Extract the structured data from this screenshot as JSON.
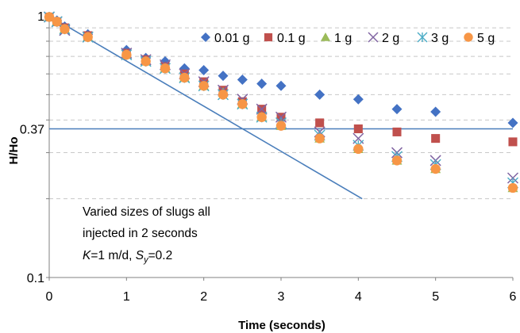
{
  "chart_data": {
    "type": "scatter",
    "title": "",
    "xlabel": "Time (seconds)",
    "ylabel": "H/Ho",
    "xlim": [
      0,
      6
    ],
    "ylim": [
      0.1,
      1
    ],
    "y_scale": "log",
    "grid": "horizontal dashed",
    "legend_position": "top-right",
    "x_ticks": [
      "0",
      "1",
      "2",
      "3",
      "4",
      "5",
      "6"
    ],
    "y_ticks": [
      {
        "value": 1,
        "label": "1"
      },
      {
        "value": 0.37,
        "label": "0.37"
      },
      {
        "value": 0.1,
        "label": "0.1"
      }
    ],
    "series": [
      {
        "name": "0.01 g",
        "marker": "diamond",
        "color": "#4472c4",
        "x": [
          0,
          0.1,
          0.2,
          0.5,
          1,
          1.25,
          1.5,
          1.75,
          2,
          2.25,
          2.5,
          2.75,
          3,
          3.5,
          4,
          4.5,
          5,
          6
        ],
        "y": [
          0.99,
          0.96,
          0.91,
          0.85,
          0.74,
          0.69,
          0.67,
          0.63,
          0.62,
          0.59,
          0.57,
          0.55,
          0.54,
          0.5,
          0.48,
          0.44,
          0.43,
          0.39
        ]
      },
      {
        "name": "0.1 g",
        "marker": "square",
        "color": "#c0504d",
        "x": [
          0,
          0.1,
          0.2,
          0.5,
          1,
          1.25,
          1.5,
          1.75,
          2,
          2.25,
          2.5,
          2.75,
          3,
          3.5,
          4,
          4.5,
          5,
          6
        ],
        "y": [
          0.99,
          0.95,
          0.9,
          0.84,
          0.72,
          0.68,
          0.64,
          0.6,
          0.56,
          0.52,
          0.47,
          0.44,
          0.41,
          0.39,
          0.37,
          0.36,
          0.34,
          0.33
        ]
      },
      {
        "name": "1 g",
        "marker": "triangle",
        "color": "#9bbb59",
        "x": [
          0,
          0.1,
          0.2,
          0.5,
          1,
          1.25,
          1.5,
          1.75,
          2,
          2.25,
          2.5,
          2.75,
          3,
          3.5,
          4,
          4.5,
          5,
          6
        ],
        "y": [
          0.99,
          0.95,
          0.89,
          0.83,
          0.71,
          0.67,
          0.63,
          0.58,
          0.54,
          0.51,
          0.46,
          0.41,
          0.38,
          0.34,
          0.31,
          0.28,
          0.26,
          0.22
        ]
      },
      {
        "name": "2 g",
        "marker": "x",
        "color": "#8064a2",
        "x": [
          0,
          0.1,
          0.2,
          0.5,
          1,
          1.25,
          1.5,
          1.75,
          2,
          2.25,
          2.5,
          2.75,
          3,
          3.5,
          4,
          4.5,
          5,
          6
        ],
        "y": [
          0.99,
          0.95,
          0.88,
          0.83,
          0.72,
          0.68,
          0.65,
          0.6,
          0.56,
          0.52,
          0.48,
          0.44,
          0.41,
          0.36,
          0.34,
          0.3,
          0.28,
          0.24
        ]
      },
      {
        "name": "3 g",
        "marker": "asterisk",
        "color": "#4bacc6",
        "x": [
          0,
          0.1,
          0.2,
          0.5,
          1,
          1.25,
          1.5,
          1.75,
          2,
          2.25,
          2.5,
          2.75,
          3,
          3.5,
          4,
          4.5,
          5,
          6
        ],
        "y": [
          0.99,
          0.95,
          0.89,
          0.83,
          0.71,
          0.67,
          0.63,
          0.58,
          0.54,
          0.5,
          0.46,
          0.41,
          0.39,
          0.35,
          0.32,
          0.29,
          0.27,
          0.23
        ]
      },
      {
        "name": "5 g",
        "marker": "circle",
        "color": "#f79646",
        "x": [
          0,
          0.1,
          0.2,
          0.5,
          1,
          1.25,
          1.5,
          1.75,
          2,
          2.25,
          2.5,
          2.75,
          3,
          3.5,
          4,
          4.5,
          5,
          6
        ],
        "y": [
          0.99,
          0.95,
          0.89,
          0.83,
          0.71,
          0.67,
          0.63,
          0.58,
          0.54,
          0.5,
          0.46,
          0.41,
          0.38,
          0.34,
          0.31,
          0.28,
          0.26,
          0.22
        ]
      }
    ],
    "reference_lines": [
      {
        "kind": "horizontal",
        "y": 0.37,
        "color": "#4a7ebb"
      },
      {
        "kind": "segment",
        "x": [
          0,
          4.05
        ],
        "y": [
          1,
          0.2
        ],
        "color": "#4a7ebb"
      }
    ],
    "annotation": {
      "lines": [
        "Varied sizes of slugs all",
        "injected in 2 seconds"
      ],
      "params": {
        "k_symbol": "K",
        "k_value": "=1 m/d, ",
        "s_symbol": "S",
        "s_sub": "y",
        "s_value": "=0.2"
      }
    }
  }
}
